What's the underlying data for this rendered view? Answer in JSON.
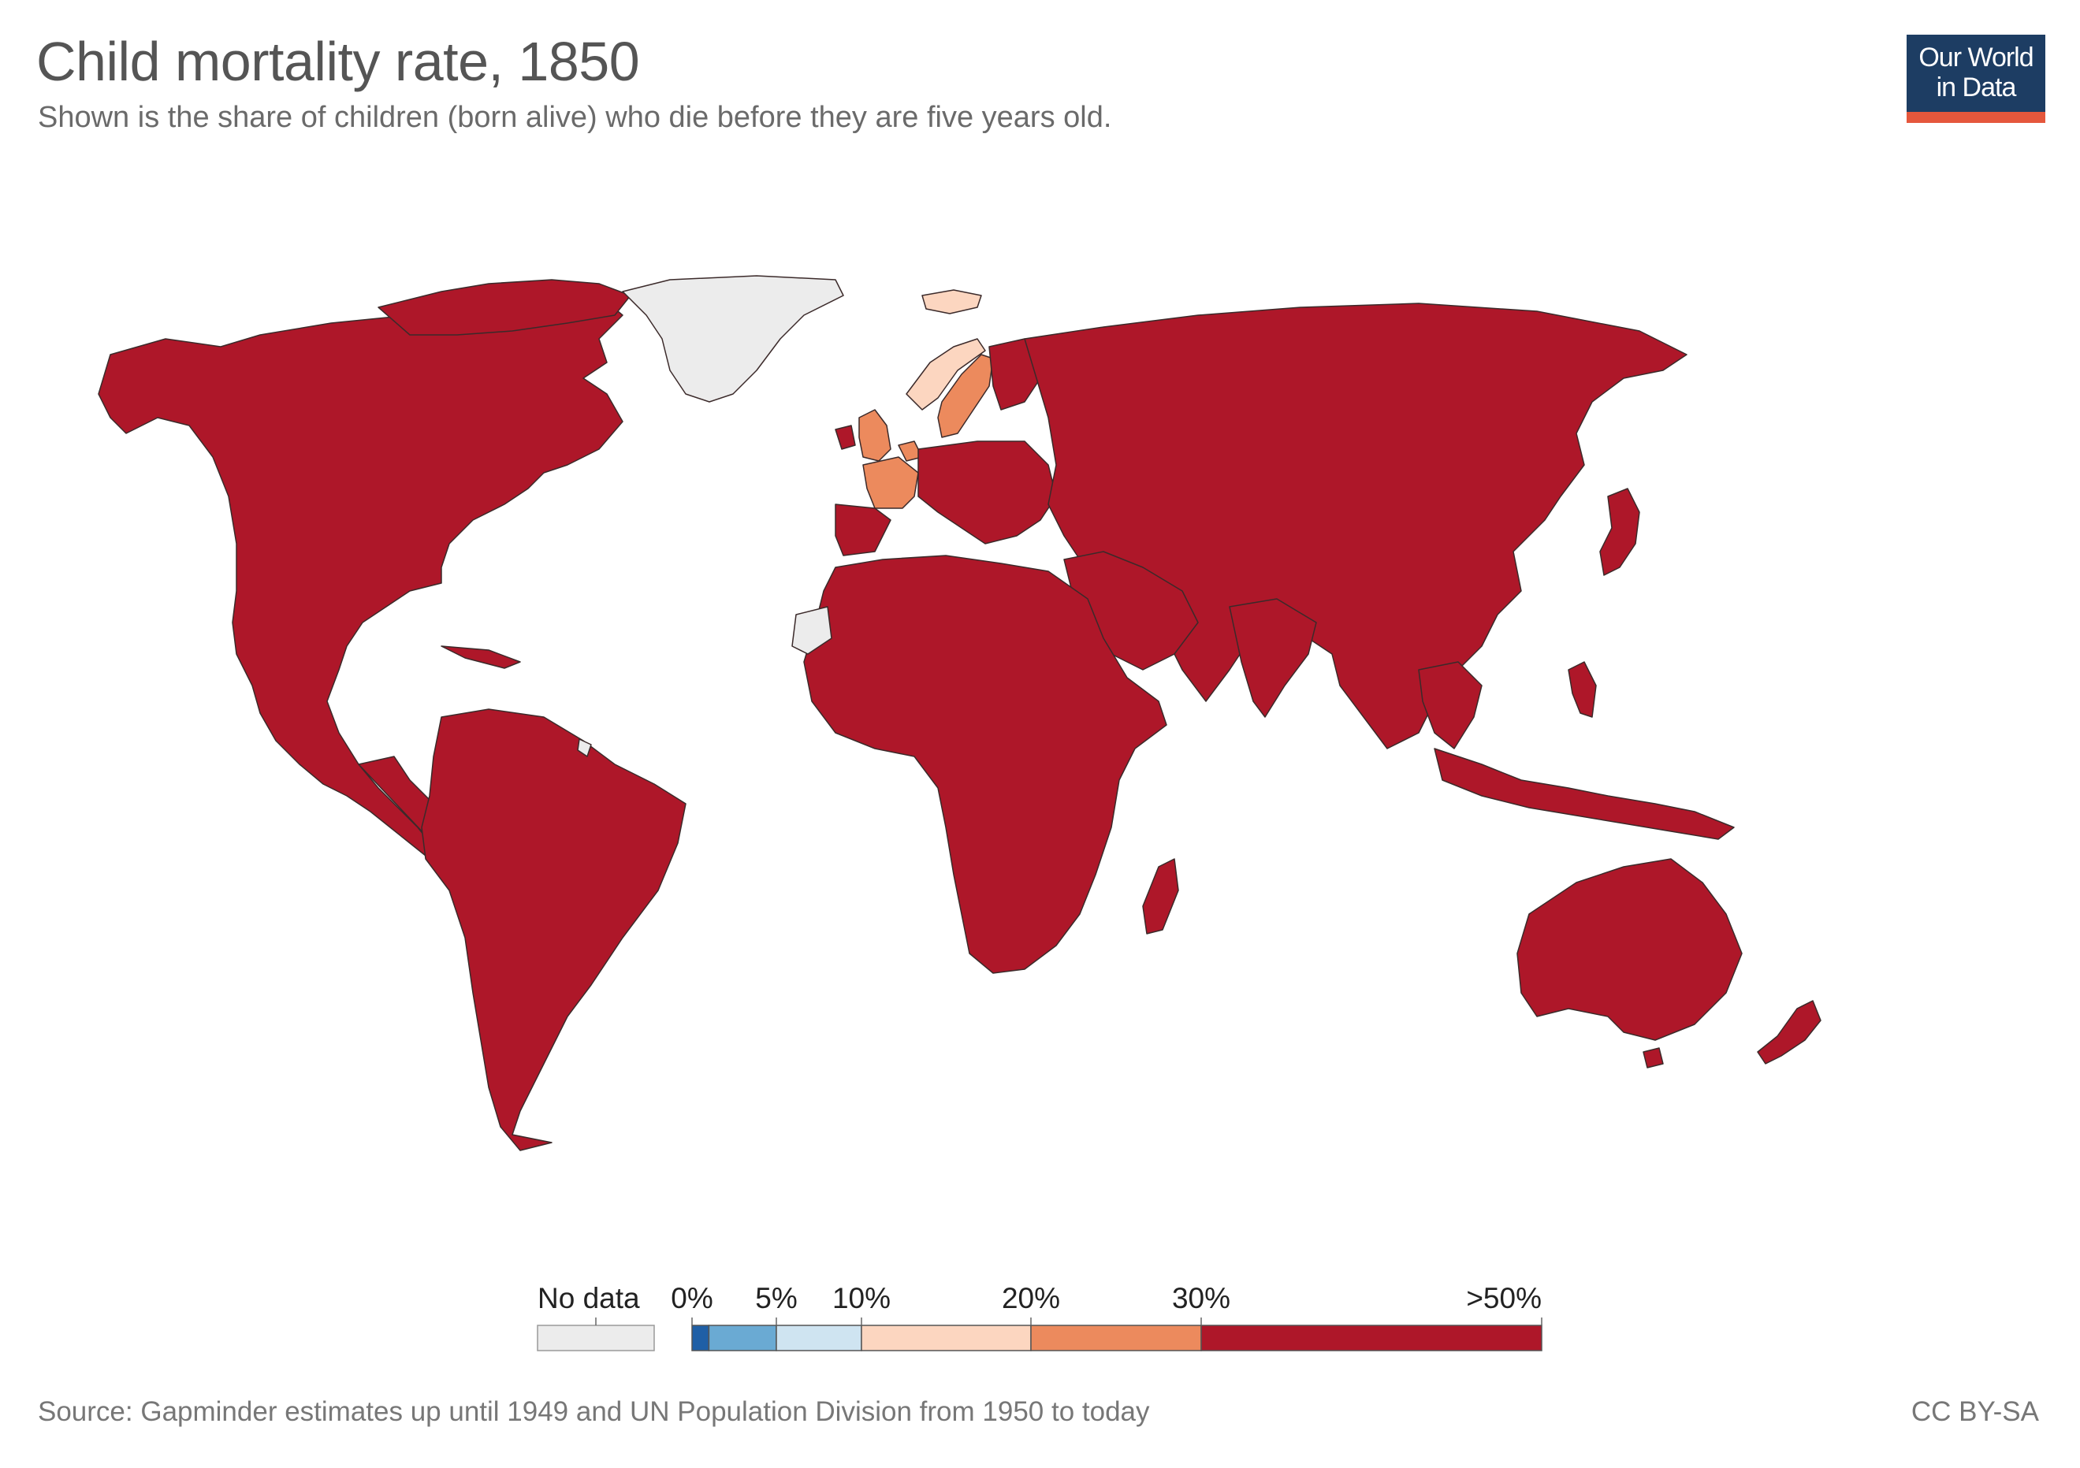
{
  "header": {
    "title": "Child mortality rate, 1850",
    "subtitle": "Shown is the share of children (born alive) who die before they are five years old."
  },
  "logo": {
    "line1": "Our World",
    "line2": "in Data"
  },
  "legend": {
    "no_data_label": "No data",
    "bins": [
      {
        "from": 0,
        "to": 1,
        "color": "#1f5fa6"
      },
      {
        "from": 1,
        "to": 5,
        "color": "#6aaad3"
      },
      {
        "from": 5,
        "to": 10,
        "color": "#cfe4f1"
      },
      {
        "from": 10,
        "to": 20,
        "color": "#fcd6c0"
      },
      {
        "from": 20,
        "to": 30,
        "color": "#ec8a5d"
      },
      {
        "from": 30,
        "to": 50,
        "color": "#ae1729"
      }
    ],
    "tick_labels": [
      "0%",
      "5%",
      "10%",
      "20%",
      "30%",
      ">50%"
    ],
    "no_data_color": "#ececec"
  },
  "colors": {
    "above_30": "#ae1729",
    "from_20_to_30": "#ec8a5d",
    "from_10_to_20": "#fcd6c0",
    "no_data": "#ececec",
    "border": "#3b2a2a"
  },
  "map_regions": {
    "no_data": [
      "Greenland",
      "Western Sahara",
      "French Guiana"
    ],
    "from_10_to_20": [
      "Iceland",
      "Norway"
    ],
    "from_20_to_30": [
      "Sweden",
      "United Kingdom",
      "France",
      "Belgium",
      "Netherlands",
      "Denmark"
    ],
    "above_30": [
      "North America",
      "Central America",
      "South America",
      "Africa",
      "Russia",
      "Asia",
      "Australia",
      "New Zealand",
      "Rest of Europe"
    ]
  },
  "footer": {
    "source": "Source: Gapminder estimates up until 1949 and UN Population Division from 1950 to today",
    "license": "CC BY-SA"
  }
}
